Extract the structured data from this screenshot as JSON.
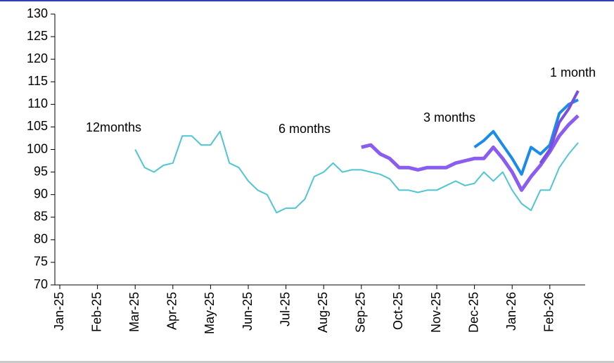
{
  "chart_data": {
    "type": "line",
    "categories": [
      "Jan-25",
      null,
      null,
      null,
      "Feb-25",
      null,
      null,
      null,
      "Mar-25",
      null,
      null,
      null,
      "Apr-25",
      null,
      null,
      null,
      "May-25",
      null,
      null,
      null,
      "Jun-25",
      null,
      null,
      null,
      "Jul-25",
      null,
      null,
      null,
      "Aug-25",
      null,
      null,
      null,
      "Sep-25",
      null,
      null,
      null,
      "Oct-25",
      null,
      null,
      null,
      "Nov-25",
      null,
      null,
      null,
      "Dec-25",
      null,
      null,
      null,
      "Jan-26",
      null,
      null,
      null,
      "Feb-26",
      null,
      null,
      null
    ],
    "series": [
      {
        "name": "12months",
        "color": "#4fc6d2",
        "width": 2,
        "values": [
          null,
          null,
          null,
          null,
          null,
          null,
          null,
          null,
          100,
          96,
          95,
          96.5,
          97,
          103,
          103,
          101,
          101,
          104,
          97,
          96,
          93,
          91,
          90,
          86,
          87,
          87,
          89,
          94,
          95,
          97,
          95,
          95.5,
          95.5,
          95,
          94.5,
          93.5,
          91,
          91,
          90.5,
          91,
          91,
          92,
          93,
          92,
          92.5,
          95,
          93,
          95,
          91,
          88,
          86.5,
          91,
          91,
          96,
          99,
          101.5
        ]
      },
      {
        "name": "6 months",
        "color": "#8a5cf0",
        "width": 5,
        "values": [
          null,
          null,
          null,
          null,
          null,
          null,
          null,
          null,
          null,
          null,
          null,
          null,
          null,
          null,
          null,
          null,
          null,
          null,
          null,
          null,
          null,
          null,
          null,
          null,
          null,
          null,
          null,
          null,
          null,
          null,
          null,
          null,
          100.5,
          101,
          99,
          98,
          96,
          96,
          95.5,
          96,
          96,
          96,
          97,
          97.5,
          98,
          98,
          100.5,
          98,
          95,
          91,
          94,
          96.5,
          99.5,
          103,
          105.5,
          107.5
        ]
      },
      {
        "name": "3 months",
        "color": "#1a8be8",
        "width": 4,
        "values": [
          null,
          null,
          null,
          null,
          null,
          null,
          null,
          null,
          null,
          null,
          null,
          null,
          null,
          null,
          null,
          null,
          null,
          null,
          null,
          null,
          null,
          null,
          null,
          null,
          null,
          null,
          null,
          null,
          null,
          null,
          null,
          null,
          null,
          null,
          null,
          null,
          null,
          null,
          null,
          null,
          null,
          null,
          null,
          null,
          100.5,
          102,
          104,
          101,
          98,
          94.5,
          100.5,
          99,
          101,
          108,
          110,
          111
        ]
      },
      {
        "name": "1 month",
        "color": "#7a4fe0",
        "width": 4,
        "values": [
          null,
          null,
          null,
          null,
          null,
          null,
          null,
          null,
          null,
          null,
          null,
          null,
          null,
          null,
          null,
          null,
          null,
          null,
          null,
          null,
          null,
          null,
          null,
          null,
          null,
          null,
          null,
          null,
          null,
          null,
          null,
          null,
          null,
          null,
          null,
          null,
          null,
          null,
          null,
          null,
          null,
          null,
          null,
          null,
          null,
          null,
          null,
          null,
          null,
          null,
          null,
          97,
          100,
          106,
          109,
          113
        ]
      }
    ],
    "ylim": [
      70,
      130
    ],
    "yticks": [
      70,
      75,
      80,
      85,
      90,
      95,
      100,
      105,
      110,
      115,
      120,
      125,
      130
    ]
  }
}
